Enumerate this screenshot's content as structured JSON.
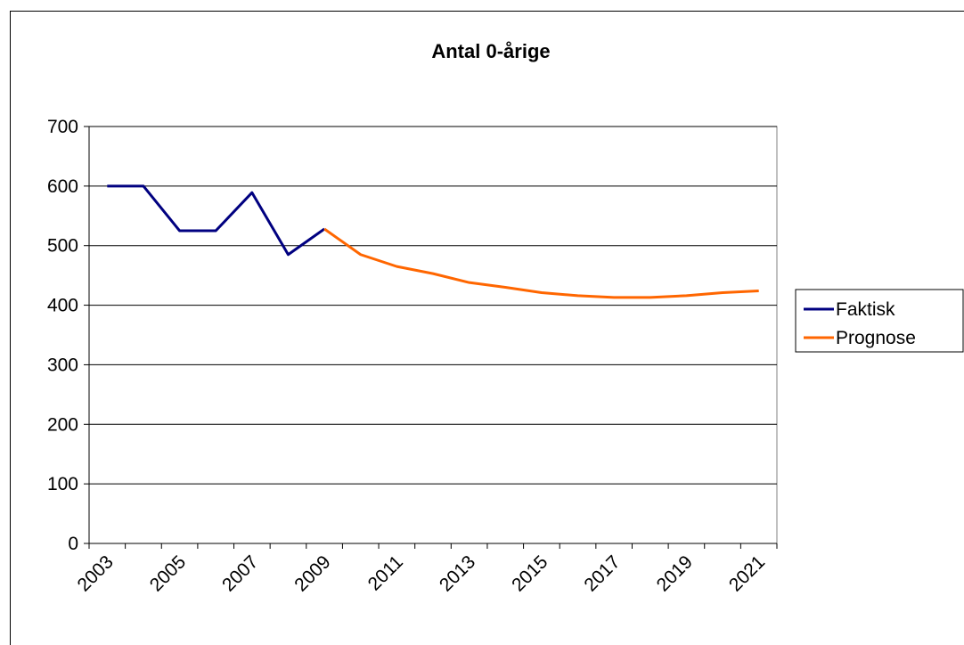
{
  "chart_data": {
    "type": "line",
    "title": "Antal 0-årige",
    "categories": [
      "2003",
      null,
      "2005",
      null,
      "2007",
      null,
      "2009",
      null,
      "2011",
      null,
      "2013",
      null,
      "2015",
      null,
      "2017",
      null,
      "2019",
      null,
      "2021"
    ],
    "series": [
      {
        "name": "Faktisk",
        "color": "#000080",
        "values": [
          600,
          600,
          525,
          525,
          589,
          485,
          528,
          null,
          null,
          null,
          null,
          null,
          null,
          null,
          null,
          null,
          null,
          null,
          null
        ]
      },
      {
        "name": "Prognose",
        "color": "#ff6600",
        "values": [
          null,
          null,
          null,
          null,
          null,
          null,
          528,
          485,
          465,
          453,
          438,
          430,
          421,
          416,
          413,
          413,
          416,
          421,
          424
        ]
      }
    ],
    "ylim": [
      0,
      700
    ],
    "yticks": [
      0,
      100,
      200,
      300,
      400,
      500,
      600,
      700
    ],
    "grid": true,
    "legend": "right"
  }
}
